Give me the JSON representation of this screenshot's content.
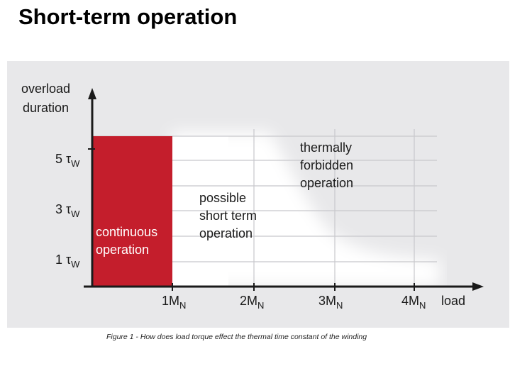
{
  "title": "Short-term operation",
  "caption": "Figure 1 - How does load torque effect the thermal time constant of the winding",
  "colors": {
    "panel_bg": "#e8e8ea",
    "continuous_fill": "#c41e2c",
    "possible_fill": "#ffffff",
    "grid": "#c8c8cc",
    "axis": "#1a1a1a"
  },
  "axes": {
    "y_label_line1": "overload",
    "y_label_line2": "duration",
    "x_label": "load",
    "y_ticks": [
      {
        "main": "5 τ",
        "sub": "W"
      },
      {
        "main": "3 τ",
        "sub": "W"
      },
      {
        "main": "1 τ",
        "sub": "W"
      }
    ],
    "x_ticks": [
      {
        "main": "1M",
        "sub": "N"
      },
      {
        "main": "2M",
        "sub": "N"
      },
      {
        "main": "3M",
        "sub": "N"
      },
      {
        "main": "4M",
        "sub": "N"
      }
    ]
  },
  "regions": {
    "continuous": [
      "continuous",
      "operation"
    ],
    "possible": [
      "possible",
      "short term",
      "operation"
    ],
    "forbidden": [
      "thermally",
      "forbidden",
      "operation"
    ]
  }
}
